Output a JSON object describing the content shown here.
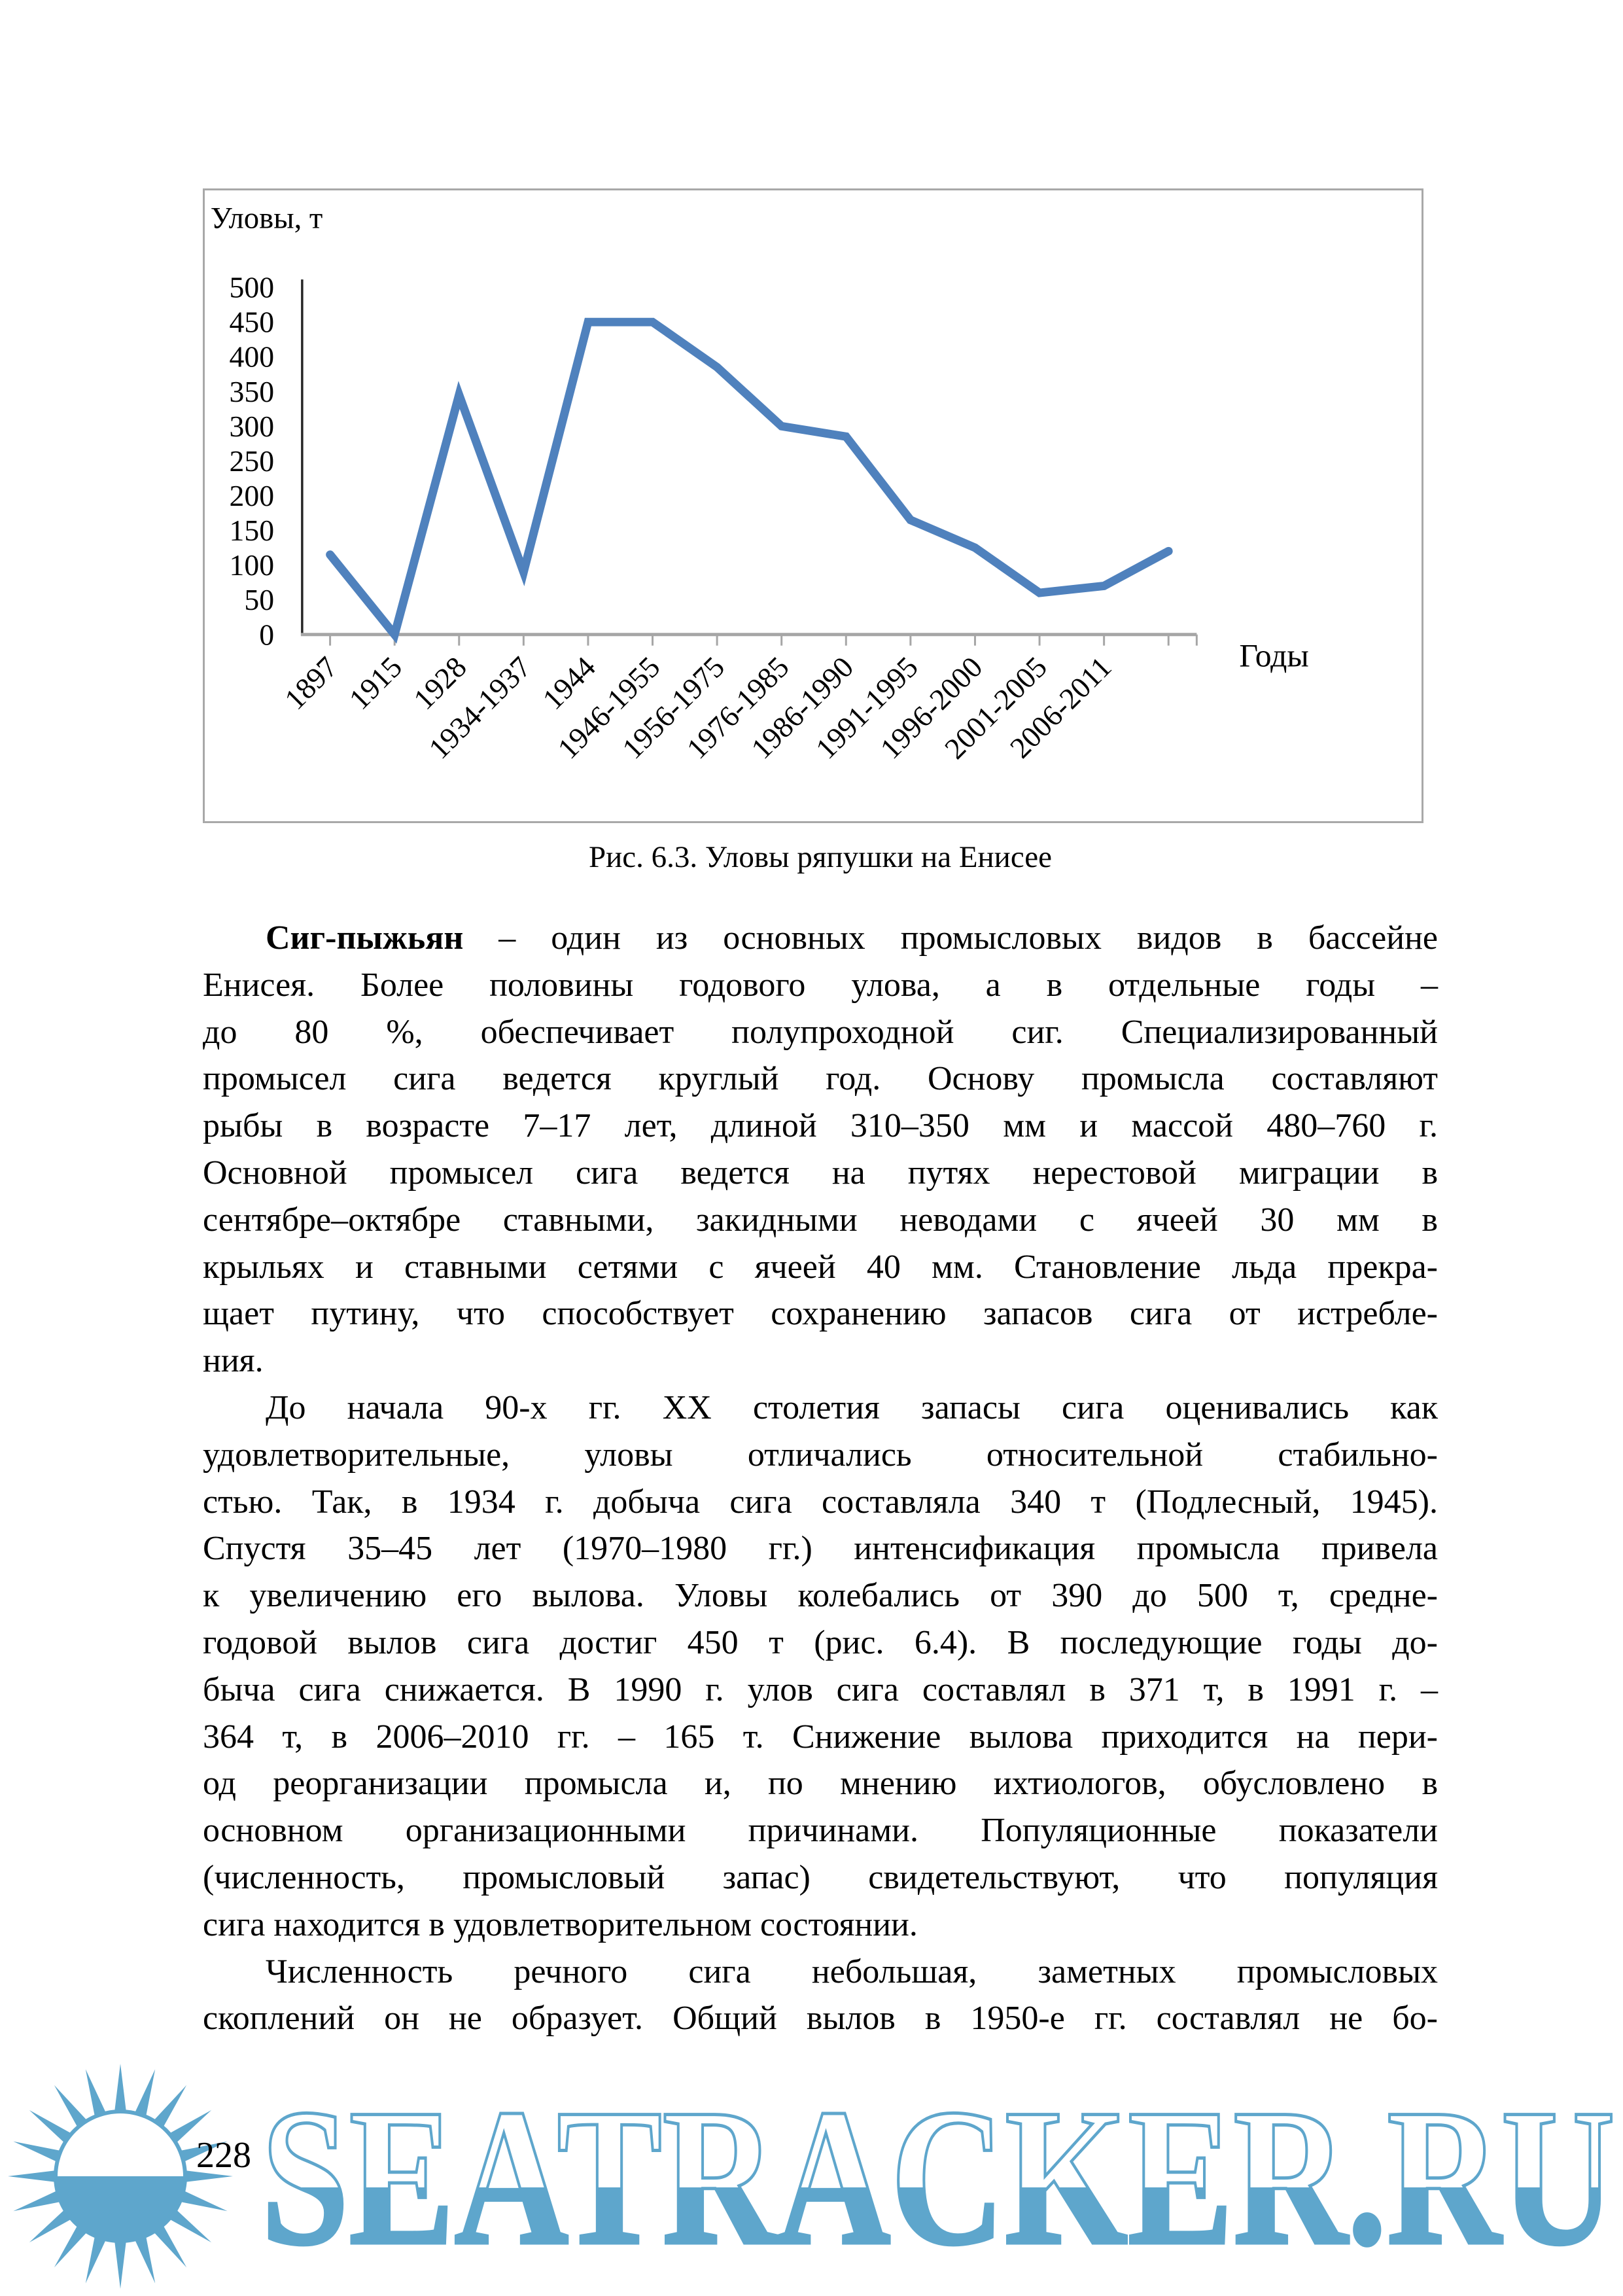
{
  "figure": {
    "caption": "Рис. 6.3. Уловы ряпушки на Енисее"
  },
  "chart_data": {
    "type": "line",
    "title": "",
    "ylabel": "Уловы, т",
    "xlabel": "Годы",
    "ylim": [
      0,
      500
    ],
    "ytick_step": 50,
    "grid": false,
    "legend": "none",
    "line_color": "#4f81bd",
    "axis_color": "#a6a6a6",
    "categories": [
      "1897",
      "1915",
      "1928",
      "1934-1937",
      "1944",
      "1946-1955",
      "1956-1975",
      "1976-1985",
      "1986-1990",
      "1991-1995",
      "1996-2000",
      "2001-2005",
      "2006-2011",
      ""
    ],
    "values": [
      115,
      0,
      345,
      90,
      450,
      450,
      385,
      300,
      285,
      165,
      125,
      60,
      70,
      120
    ]
  },
  "body": {
    "paragraphs": [
      {
        "lines": [
          {
            "bold": "Сиг-пыжьян",
            "text": " – один из основных промысловых видов в бассейне"
          },
          {
            "text": "Енисея. Более половины годового улова, а в отдельные годы –"
          },
          {
            "text": "до 80 %, обеспечивает полупроходной сиг. Специализированный"
          },
          {
            "text": "промысел сига ведется круглый год. Основу промысла составляют"
          },
          {
            "text": "рыбы в возрасте 7–17 лет, длиной 310–350 мм и массой 480–760 г."
          },
          {
            "text": "Основной промысел сига ведется на путях нерестовой миграции в"
          },
          {
            "text": "сентябре–октябре ставными, закидными неводами с ячеей 30 мм в"
          },
          {
            "text": "крыльях и ставными сетями с ячеей 40 мм. Становление льда прекра-"
          },
          {
            "text": "щает путину, что способствует сохранению запасов сига от истребле-"
          },
          {
            "text": "ния.",
            "final": true
          }
        ]
      },
      {
        "lines": [
          {
            "text": "До начала 90-х гг. XX столетия запасы сига оценивались как"
          },
          {
            "text": "удовлетворительные, уловы отличались относительной стабильно-"
          },
          {
            "text": "стью. Так, в 1934 г. добыча сига составляла 340 т (Подлесный, 1945)."
          },
          {
            "text": "Спустя 35–45 лет (1970–1980 гг.) интенсификация промысла привела"
          },
          {
            "text": "к увеличению его вылова. Уловы колебались от 390 до 500 т, средне-"
          },
          {
            "text": "годовой вылов сига достиг 450 т (рис. 6.4). В последующие годы до-"
          },
          {
            "text": "быча сига снижается. В 1990 г. улов сига составлял в 371 т, в 1991 г. –"
          },
          {
            "text": "364 т, в 2006–2010 гг. – 165 т. Снижение вылова приходится на пери-"
          },
          {
            "text": "од реорганизации промысла и, по мнению ихтиологов, обусловлено в"
          },
          {
            "text": "основном организационными причинами. Популяционные показатели"
          },
          {
            "text": "(численность, промысловый запас) свидетельствуют, что популяция"
          },
          {
            "text": "сига находится в удовлетворительном состоянии.",
            "final": true
          }
        ]
      },
      {
        "lines": [
          {
            "text": "Численность речного сига небольшая, заметных промысловых"
          },
          {
            "text": "скоплений он не образует. Общий вылов в 1950-е гг. составлял не бо-"
          }
        ]
      }
    ]
  },
  "footer": {
    "page_number": "228"
  },
  "watermark": {
    "text": "SEATRACKER.RU",
    "color": "#5ea6cc"
  }
}
